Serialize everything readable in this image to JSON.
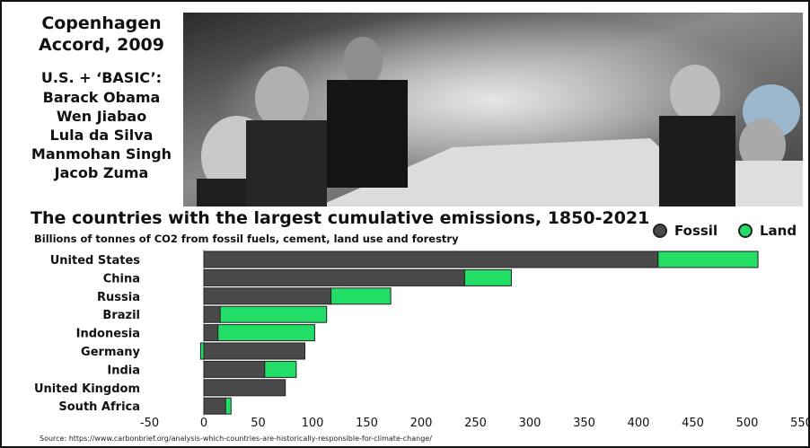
{
  "caption": {
    "title_line1": "Copenhagen",
    "title_line2": "Accord, 2009",
    "subtitle": "U.S. + ‘BASIC’:",
    "names": [
      "Barack Obama",
      "Wen Jiabao",
      "Lula da Silva",
      "Manmohan Singh",
      "Jacob Zuma"
    ]
  },
  "legend": {
    "fossil_label": "Fossil",
    "land_label": "Land"
  },
  "source": "Source: https://www.carbonbrief.org/analysis-which-countries-are-historically-responsible-for-climate-change/",
  "colors": {
    "fossil": "#4a4a4a",
    "land": "#22dd66",
    "outline": "#222222"
  },
  "chart_data": {
    "type": "bar",
    "orientation": "horizontal",
    "stacked": true,
    "title": "The countries with the largest cumulative emissions, 1850-2021",
    "subtitle": "Billions of tonnes of CO2 from fossil fuels, cement, land use and forestry",
    "categories": [
      "United States",
      "China",
      "Russia",
      "Brazil",
      "Indonesia",
      "Germany",
      "India",
      "United Kingdom",
      "South Africa"
    ],
    "series": [
      {
        "name": "Fossil",
        "values": [
          418,
          240,
          117,
          15,
          13,
          93,
          56,
          75,
          20
        ]
      },
      {
        "name": "Land",
        "values": [
          92,
          43,
          55,
          98,
          89,
          -3,
          29,
          0,
          5
        ]
      }
    ],
    "xlim": [
      -50,
      550
    ],
    "xticks": [
      "-50",
      "0",
      "50",
      "100",
      "150",
      "200",
      "250",
      "300",
      "350",
      "400",
      "450",
      "500",
      "550"
    ],
    "legend_position": "top-right",
    "grid": false
  }
}
